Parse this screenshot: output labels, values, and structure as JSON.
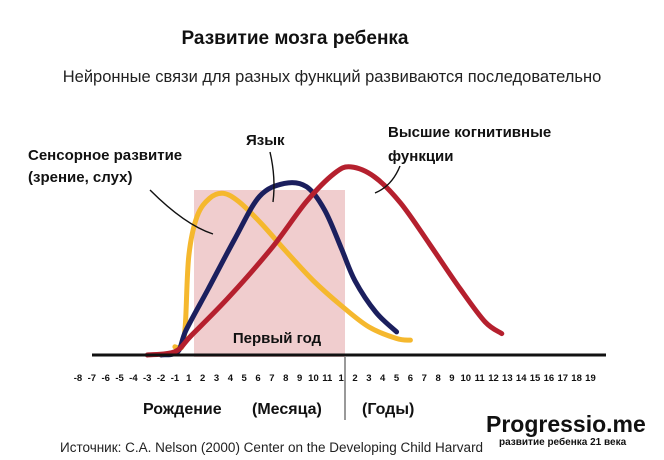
{
  "chart_data": {
    "type": "line",
    "title": "Развитие мозга ребенка",
    "subtitle": "Нейронные связи для разных функций развиваются последовательно",
    "x_ticks_before_birth": [
      "-8",
      "-7",
      "-6",
      "-5",
      "-4",
      "-3",
      "-2",
      "-1"
    ],
    "x_ticks_months": [
      "1",
      "2",
      "3",
      "4",
      "5",
      "6",
      "7",
      "8",
      "9",
      "10",
      "11"
    ],
    "x_ticks_years": [
      "1",
      "2",
      "3",
      "4",
      "5",
      "6",
      "7",
      "8",
      "9",
      "10",
      "11",
      "12",
      "13",
      "14",
      "15",
      "16",
      "17",
      "18",
      "19"
    ],
    "axis_labels": {
      "birth": "Рождение",
      "months": "(Месяца)",
      "years": "(Годы)"
    },
    "highlight_label": "Первый год",
    "series": [
      {
        "name": "Сенсорное развитие (зрение, слух)",
        "color": "#F5B82E",
        "points": [
          [
            -1,
            0.05
          ],
          [
            0,
            0.05
          ],
          [
            0.5,
            0.18
          ],
          [
            1,
            0.6
          ],
          [
            1.6,
            0.84
          ],
          [
            2.5,
            0.95
          ],
          [
            3.5,
            0.98
          ],
          [
            4.6,
            0.93
          ],
          [
            6.2,
            0.8
          ],
          [
            8,
            0.63
          ],
          [
            10,
            0.45
          ],
          [
            12,
            0.3
          ],
          [
            14,
            0.17
          ],
          [
            16,
            0.1
          ],
          [
            17,
            0.09
          ]
        ]
      },
      {
        "name": "Язык",
        "color": "#1B1F5E",
        "points": [
          [
            -2,
            0.0
          ],
          [
            -0.6,
            0.02
          ],
          [
            0.6,
            0.15
          ],
          [
            2.4,
            0.4
          ],
          [
            4.3,
            0.7
          ],
          [
            6.1,
            0.96
          ],
          [
            7.9,
            1.04
          ],
          [
            9.5,
            1.02
          ],
          [
            10.8,
            0.88
          ],
          [
            12,
            0.65
          ],
          [
            13,
            0.45
          ],
          [
            14.5,
            0.26
          ],
          [
            16,
            0.14
          ]
        ]
      },
      {
        "name": "Высшие когнитивные функции",
        "color": "#B5202E",
        "points": [
          [
            -3,
            0.0
          ],
          [
            -1,
            0.02
          ],
          [
            1.2,
            0.12
          ],
          [
            4,
            0.36
          ],
          [
            7,
            0.65
          ],
          [
            9.5,
            0.93
          ],
          [
            11.5,
            1.1
          ],
          [
            12.7,
            1.14
          ],
          [
            14.4,
            1.08
          ],
          [
            16.3,
            0.92
          ],
          [
            18.4,
            0.67
          ],
          [
            20.6,
            0.4
          ],
          [
            22.4,
            0.2
          ],
          [
            23.6,
            0.13
          ]
        ]
      }
    ],
    "x_note": "x in tick positions: -8..-1 before birth, 1..11 months, 1..19 years (index continues: year 1 = 12)",
    "y_note": "relative intensity (no printed scale)"
  },
  "labels": {
    "sensory_line1": "Сенсорное развитие",
    "sensory_line2": "(зрение, слух)",
    "language": "Язык",
    "cognitive_line1": "Высшие когнитивные",
    "cognitive_line2": "функции"
  },
  "colors": {
    "highlight_fill": "#EBBCBE",
    "axis": "#111111"
  },
  "footer": {
    "source": "Источник: C.A. Nelson (2000) Center on the Developing Child Harvard",
    "brand": "Progressio.me",
    "brand_tagline": "развитие ребенка 21 века"
  }
}
